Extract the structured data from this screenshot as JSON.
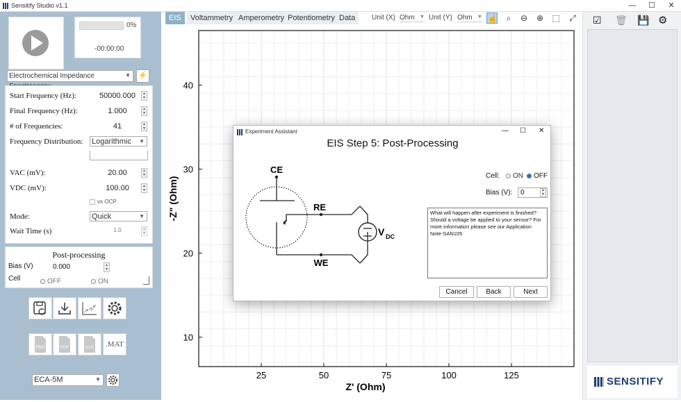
{
  "window": {
    "title": "Sensitify Studio v1.1",
    "minimize": "—",
    "maximize": "☐",
    "close": "✕"
  },
  "run": {
    "progress_pct": "0%",
    "progress_fraction": 0.0,
    "elapsed": "-00:00:00"
  },
  "technique": {
    "selected": "Electrochemical Impedance Spectroscopy"
  },
  "params": {
    "start_freq": {
      "label": "Start Frequency (Hz):",
      "value": "50000.000"
    },
    "final_freq": {
      "label": "Final Frequency (Hz):",
      "value": "1.000"
    },
    "num_freq": {
      "label": "# of Frequencies:",
      "value": "41"
    },
    "freq_dist": {
      "label": "Frequency Distribution:",
      "value": "Logarithmic"
    },
    "vac": {
      "label": "VAC (mV):",
      "value": "20.00"
    },
    "vdc": {
      "label": "VDC (mV):",
      "value": "100.00"
    },
    "vs_ocp": "vs OCP",
    "mode": {
      "label": "Mode:",
      "value": "Quick"
    },
    "wait": {
      "label": "Wait Time (s)",
      "value": "1.0"
    }
  },
  "postproc": {
    "title": "Post-processing",
    "bias_label": "Bias (V)",
    "bias_value": "0.000",
    "cell_label": "Cell",
    "off": "OFF",
    "on": "ON"
  },
  "export": {
    "png": "PNG",
    "pdf": "PDF",
    "xls": "XLS",
    "mat": ".MAT"
  },
  "device": {
    "selected": "ECA-5M"
  },
  "tabs": [
    "EIS",
    "Voltammetry",
    "Amperometry",
    "Potentiometry",
    "Data"
  ],
  "units": {
    "x_label": "Unit (X)",
    "x_value": "Ohm",
    "y_label": "Unit (Y)",
    "y_value": "Ohm"
  },
  "icons": {
    "tools": [
      "pan-icon",
      "zoom-icon",
      "zoom-out-icon",
      "zoom-in-icon",
      "zoom-box-icon",
      "fit-icon"
    ],
    "right": [
      "checklist-icon",
      "trash-icon",
      "save-icon",
      "settings-icon"
    ]
  },
  "chart_data": {
    "type": "scatter",
    "xlabel": "Z' (Ohm)",
    "ylabel": "-Z\" (Ohm)",
    "xticks": [
      25,
      50,
      75,
      100,
      125
    ],
    "yticks": [
      10,
      20,
      30,
      40
    ],
    "xlim": [
      0,
      150
    ],
    "ylim": [
      6.5,
      46.5
    ],
    "grid": true,
    "series": []
  },
  "dialog": {
    "title": "Experiment Assistant",
    "heading": "EIS Step 5: Post-Processing",
    "cell_label": "Cell:",
    "on": "ON",
    "off": "OFF",
    "bias_label": "Bias (V):",
    "bias_value": "0",
    "info": "What will happen after experiment is finished? Should a voltage be applied to your sensor? For more information please see our Application Note-SAN105",
    "diagram": {
      "ce": "CE",
      "re": "RE",
      "we": "WE",
      "vdc_main": "V",
      "vdc_sub": "DC"
    },
    "buttons": {
      "cancel": "Cancel",
      "back": "Back",
      "next": "Next"
    }
  },
  "brand": "SENSITIFY",
  "colors": {
    "panel": "#a9bfd0",
    "tab_active": "#8fb0c8",
    "brand": "#1f3b78",
    "radio": "#2b5fb3"
  }
}
